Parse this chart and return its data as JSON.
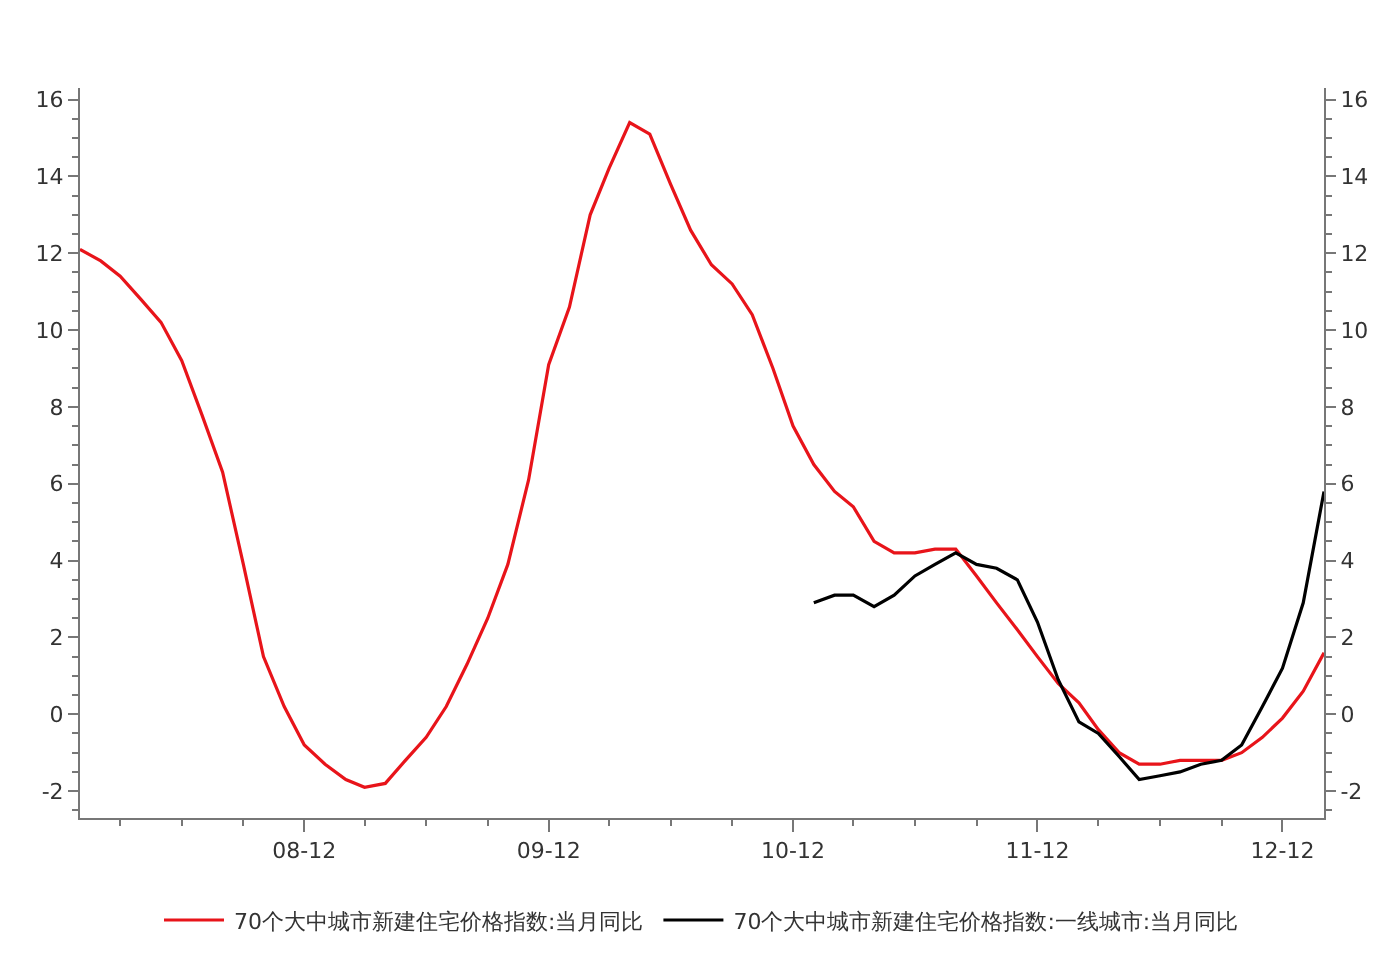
{
  "chart_data": {
    "type": "line",
    "x": [
      "2008-01",
      "2008-02",
      "2008-03",
      "2008-04",
      "2008-05",
      "2008-06",
      "2008-07",
      "2008-08",
      "2008-09",
      "2008-10",
      "2008-11",
      "2008-12",
      "2009-01",
      "2009-02",
      "2009-03",
      "2009-04",
      "2009-05",
      "2009-06",
      "2009-07",
      "2009-08",
      "2009-09",
      "2009-10",
      "2009-11",
      "2009-12",
      "2010-01",
      "2010-02",
      "2010-03",
      "2010-04",
      "2010-05",
      "2010-06",
      "2010-07",
      "2010-08",
      "2010-09",
      "2010-10",
      "2010-11",
      "2010-12",
      "2011-01",
      "2011-02",
      "2011-03",
      "2011-04",
      "2011-05",
      "2011-06",
      "2011-07",
      "2011-08",
      "2011-09",
      "2011-10",
      "2011-11",
      "2011-12",
      "2012-01",
      "2012-02",
      "2012-03",
      "2012-04",
      "2012-05",
      "2012-06",
      "2012-07",
      "2012-08",
      "2012-09",
      "2012-10",
      "2012-11",
      "2012-12",
      "2013-01",
      "2013-02"
    ],
    "series": [
      {
        "name": "70个大中城市新建住宅价格指数:当月同比",
        "color": "#e8141a",
        "values": [
          12.1,
          11.8,
          11.4,
          10.8,
          10.2,
          9.2,
          7.8,
          6.3,
          3.9,
          1.5,
          0.2,
          -0.8,
          -1.3,
          -1.7,
          -1.9,
          -1.8,
          -1.2,
          -0.6,
          0.2,
          1.3,
          2.5,
          3.9,
          6.1,
          9.1,
          10.6,
          13.0,
          14.2,
          15.4,
          15.1,
          13.8,
          12.6,
          11.7,
          11.2,
          10.4,
          9.0,
          7.5,
          6.5,
          5.8,
          5.4,
          4.5,
          4.2,
          4.2,
          4.3,
          4.3,
          3.6,
          2.9,
          2.2,
          1.5,
          0.8,
          0.3,
          -0.4,
          -1.0,
          -1.3,
          -1.3,
          -1.2,
          -1.2,
          -1.2,
          -1.0,
          -0.6,
          -0.1,
          0.6,
          1.6
        ]
      },
      {
        "name": "70个大中城市新建住宅价格指数:一线城市:当月同比",
        "color": "#000000",
        "values": [
          null,
          null,
          null,
          null,
          null,
          null,
          null,
          null,
          null,
          null,
          null,
          null,
          null,
          null,
          null,
          null,
          null,
          null,
          null,
          null,
          null,
          null,
          null,
          null,
          null,
          null,
          null,
          null,
          null,
          null,
          null,
          null,
          null,
          null,
          null,
          null,
          2.9,
          3.1,
          3.1,
          2.8,
          3.1,
          3.6,
          3.9,
          4.2,
          3.9,
          3.8,
          3.5,
          2.4,
          0.9,
          -0.2,
          -0.5,
          -1.1,
          -1.7,
          -1.6,
          -1.5,
          -1.3,
          -1.2,
          -0.8,
          0.2,
          1.2,
          2.9,
          5.8
        ]
      }
    ],
    "xlim": [
      "2008-01",
      "2013-02"
    ],
    "xticks": [
      {
        "value": "2008-12",
        "label": "08-12"
      },
      {
        "value": "2009-12",
        "label": "09-12"
      },
      {
        "value": "2010-12",
        "label": "10-12"
      },
      {
        "value": "2011-12",
        "label": "11-12"
      },
      {
        "value": "2012-12",
        "label": "12-12"
      }
    ],
    "ylim": [
      -2.7,
      16.3
    ],
    "yticks": [
      -2,
      0,
      2,
      4,
      6,
      8,
      10,
      12,
      14,
      16
    ],
    "y2lim": [
      -2.7,
      16.3
    ],
    "y2ticks": [
      -2,
      0,
      2,
      4,
      6,
      8,
      10,
      12,
      14,
      16
    ],
    "grid": false,
    "legend": "bottom",
    "marker": "none",
    "line_style": "solid"
  }
}
